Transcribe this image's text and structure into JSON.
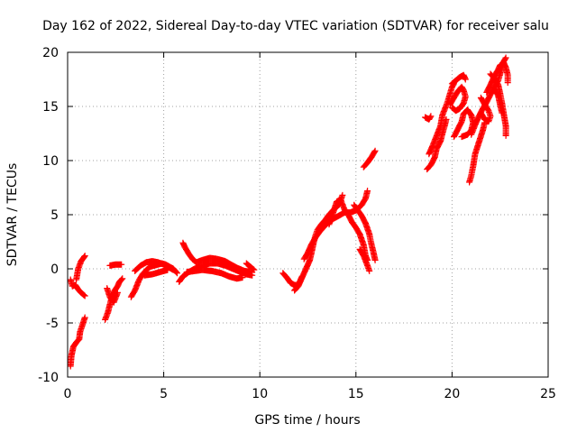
{
  "chart_data": {
    "type": "scatter",
    "title": "Day 162 of 2022, Sidereal Day-to-day VTEC variation (SDTVAR) for receiver salu",
    "xlabel": "GPS time / hours",
    "ylabel": "SDTVAR / TECUs",
    "xlim": [
      0,
      25
    ],
    "ylim": [
      -10,
      20
    ],
    "xticks": [
      0,
      5,
      10,
      15,
      20,
      25
    ],
    "yticks": [
      -10,
      -5,
      0,
      5,
      10,
      15,
      20
    ],
    "grid": true,
    "marker": "+",
    "series_color": "#ff0000",
    "series": [
      {
        "segments": [
          [
            [
              0.15,
              -9.0
            ],
            [
              0.2,
              -8.0
            ],
            [
              0.3,
              -7.2
            ],
            [
              0.45,
              -6.8
            ],
            [
              0.6,
              -6.5
            ],
            [
              0.65,
              -5.8
            ],
            [
              0.75,
              -5.3
            ],
            [
              0.9,
              -4.5
            ]
          ],
          [
            [
              0.15,
              -1.0
            ],
            [
              0.25,
              -1.6
            ],
            [
              0.4,
              -1.5
            ],
            [
              0.55,
              -1.9
            ],
            [
              0.7,
              -2.2
            ],
            [
              0.9,
              -2.5
            ]
          ],
          [
            [
              0.45,
              -1.0
            ],
            [
              0.55,
              0.0
            ],
            [
              0.7,
              0.7
            ],
            [
              0.9,
              1.2
            ]
          ],
          [
            [
              1.95,
              -4.7
            ],
            [
              2.1,
              -4.0
            ],
            [
              2.2,
              -3.3
            ],
            [
              2.3,
              -2.6
            ],
            [
              2.45,
              -2.0
            ],
            [
              2.6,
              -1.6
            ],
            [
              2.7,
              -1.2
            ],
            [
              2.85,
              -0.9
            ]
          ],
          [
            [
              2.05,
              -1.8
            ],
            [
              2.2,
              -2.6
            ],
            [
              2.4,
              -3.1
            ],
            [
              2.6,
              -2.2
            ]
          ],
          [
            [
              2.2,
              0.3
            ],
            [
              2.5,
              0.4
            ],
            [
              2.8,
              0.4
            ]
          ],
          [
            [
              3.3,
              -2.6
            ],
            [
              3.5,
              -2.0
            ],
            [
              3.7,
              -1.1
            ],
            [
              3.9,
              -0.5
            ],
            [
              4.1,
              -0.1
            ],
            [
              4.3,
              0.2
            ],
            [
              4.5,
              0.3
            ],
            [
              4.7,
              0.4
            ],
            [
              4.9,
              0.5
            ],
            [
              5.1,
              0.4
            ],
            [
              5.3,
              0.2
            ],
            [
              5.5,
              0.0
            ],
            [
              5.7,
              -0.4
            ]
          ],
          [
            [
              3.5,
              -0.2
            ],
            [
              3.8,
              0.3
            ],
            [
              4.1,
              0.6
            ],
            [
              4.4,
              0.7
            ],
            [
              4.7,
              0.6
            ],
            [
              5.0,
              0.4
            ],
            [
              5.3,
              0.1
            ],
            [
              5.5,
              -0.1
            ]
          ],
          [
            [
              4.0,
              -0.6
            ],
            [
              4.4,
              -0.5
            ],
            [
              4.8,
              -0.3
            ],
            [
              5.2,
              -0.1
            ]
          ],
          [
            [
              5.8,
              -1.2
            ],
            [
              6.0,
              -0.7
            ],
            [
              6.3,
              -0.3
            ],
            [
              6.6,
              0.0
            ],
            [
              7.0,
              0.3
            ],
            [
              7.4,
              0.5
            ],
            [
              7.8,
              0.5
            ],
            [
              8.2,
              0.3
            ],
            [
              8.6,
              0.0
            ],
            [
              9.0,
              -0.3
            ],
            [
              9.3,
              -0.5
            ],
            [
              9.6,
              -0.6
            ]
          ],
          [
            [
              6.0,
              2.4
            ],
            [
              6.1,
              2.0
            ],
            [
              6.3,
              1.4
            ],
            [
              6.5,
              0.9
            ],
            [
              6.7,
              0.6
            ],
            [
              7.0,
              0.8
            ],
            [
              7.4,
              1.0
            ],
            [
              7.8,
              0.9
            ],
            [
              8.2,
              0.7
            ],
            [
              8.5,
              0.4
            ],
            [
              8.8,
              0.1
            ],
            [
              9.2,
              -0.2
            ],
            [
              9.6,
              -0.3
            ]
          ],
          [
            [
              6.2,
              -0.3
            ],
            [
              6.6,
              -0.2
            ],
            [
              7.0,
              -0.1
            ],
            [
              7.5,
              -0.2
            ],
            [
              8.0,
              -0.4
            ],
            [
              8.4,
              -0.7
            ],
            [
              8.8,
              -0.9
            ],
            [
              9.1,
              -0.8
            ]
          ],
          [
            [
              9.3,
              0.5
            ],
            [
              9.5,
              0.2
            ],
            [
              9.7,
              -0.1
            ]
          ],
          [
            [
              11.2,
              -0.4
            ],
            [
              11.4,
              -0.8
            ],
            [
              11.6,
              -1.3
            ],
            [
              11.8,
              -1.5
            ],
            [
              12.0,
              -1.5
            ],
            [
              12.1,
              -1.1
            ],
            [
              12.2,
              -0.7
            ]
          ],
          [
            [
              11.8,
              -2.0
            ],
            [
              12.0,
              -1.6
            ],
            [
              12.2,
              -0.8
            ],
            [
              12.4,
              0.0
            ],
            [
              12.6,
              0.8
            ],
            [
              12.7,
              1.6
            ],
            [
              12.8,
              2.4
            ],
            [
              12.9,
              3.1
            ],
            [
              13.0,
              3.6
            ],
            [
              13.2,
              4.1
            ],
            [
              13.4,
              4.5
            ],
            [
              13.6,
              5.0
            ],
            [
              13.8,
              5.4
            ],
            [
              14.0,
              5.7
            ],
            [
              14.2,
              6.3
            ],
            [
              14.3,
              6.8
            ]
          ],
          [
            [
              12.3,
              0.9
            ],
            [
              12.5,
              1.5
            ],
            [
              12.7,
              2.3
            ],
            [
              12.9,
              2.9
            ],
            [
              13.1,
              3.4
            ],
            [
              13.3,
              3.8
            ],
            [
              13.5,
              4.2
            ],
            [
              13.8,
              4.6
            ],
            [
              14.1,
              4.9
            ],
            [
              14.4,
              5.2
            ],
            [
              14.7,
              5.2
            ],
            [
              15.0,
              5.4
            ],
            [
              15.3,
              5.9
            ],
            [
              15.5,
              6.5
            ],
            [
              15.6,
              7.2
            ]
          ],
          [
            [
              13.6,
              4.1
            ],
            [
              13.8,
              5.1
            ],
            [
              14.0,
              6.2
            ],
            [
              14.2,
              6.4
            ],
            [
              14.4,
              5.5
            ],
            [
              14.6,
              5.0
            ],
            [
              14.8,
              4.3
            ],
            [
              15.0,
              3.8
            ],
            [
              15.2,
              3.2
            ],
            [
              15.4,
              2.2
            ],
            [
              15.5,
              1.2
            ],
            [
              15.6,
              0.8
            ]
          ],
          [
            [
              14.9,
              5.9
            ],
            [
              15.1,
              5.4
            ],
            [
              15.3,
              4.9
            ],
            [
              15.5,
              4.2
            ],
            [
              15.7,
              3.2
            ],
            [
              15.8,
              2.3
            ],
            [
              15.9,
              1.6
            ],
            [
              16.0,
              0.8
            ]
          ],
          [
            [
              15.2,
              1.8
            ],
            [
              15.4,
              1.2
            ],
            [
              15.6,
              0.3
            ],
            [
              15.7,
              -0.2
            ]
          ],
          [
            [
              15.4,
              9.4
            ],
            [
              15.6,
              9.8
            ],
            [
              15.8,
              10.3
            ],
            [
              15.9,
              10.6
            ],
            [
              16.0,
              10.9
            ]
          ],
          [
            [
              18.6,
              14.0
            ],
            [
              18.8,
              13.8
            ],
            [
              18.9,
              14.1
            ]
          ],
          [
            [
              18.7,
              9.2
            ],
            [
              18.9,
              9.6
            ],
            [
              19.1,
              10.3
            ],
            [
              19.2,
              11.1
            ],
            [
              19.4,
              11.8
            ],
            [
              19.5,
              12.5
            ],
            [
              19.6,
              13.1
            ],
            [
              19.7,
              13.8
            ]
          ],
          [
            [
              18.8,
              10.6
            ],
            [
              19.0,
              11.4
            ],
            [
              19.2,
              12.3
            ],
            [
              19.4,
              13.2
            ],
            [
              19.5,
              14.2
            ],
            [
              19.7,
              15.1
            ],
            [
              19.8,
              15.6
            ],
            [
              19.9,
              16.2
            ],
            [
              20.0,
              16.8
            ],
            [
              20.1,
              17.1
            ]
          ],
          [
            [
              19.9,
              15.2
            ],
            [
              20.1,
              15.8
            ],
            [
              20.3,
              16.4
            ],
            [
              20.5,
              16.8
            ],
            [
              20.6,
              16.5
            ],
            [
              20.7,
              15.9
            ],
            [
              20.6,
              15.3
            ],
            [
              20.4,
              14.8
            ],
            [
              20.2,
              14.6
            ],
            [
              20.0,
              14.9
            ]
          ],
          [
            [
              20.1,
              12.2
            ],
            [
              20.3,
              12.9
            ],
            [
              20.5,
              13.6
            ],
            [
              20.6,
              14.3
            ],
            [
              20.8,
              14.7
            ],
            [
              21.0,
              14.2
            ],
            [
              21.1,
              13.5
            ],
            [
              21.0,
              12.8
            ],
            [
              20.8,
              12.4
            ],
            [
              20.5,
              12.2
            ]
          ],
          [
            [
              20.0,
              17.1
            ],
            [
              20.2,
              17.4
            ],
            [
              20.4,
              17.7
            ],
            [
              20.6,
              17.9
            ],
            [
              20.7,
              17.5
            ]
          ],
          [
            [
              20.9,
              8.0
            ],
            [
              21.0,
              8.6
            ],
            [
              21.1,
              9.5
            ],
            [
              21.2,
              10.6
            ],
            [
              21.4,
              11.7
            ],
            [
              21.6,
              12.8
            ],
            [
              21.7,
              13.5
            ]
          ],
          [
            [
              21.0,
              12.4
            ],
            [
              21.2,
              13.3
            ],
            [
              21.4,
              14.1
            ],
            [
              21.6,
              14.8
            ],
            [
              21.8,
              15.4
            ],
            [
              22.0,
              16.1
            ],
            [
              22.2,
              16.8
            ],
            [
              22.4,
              17.4
            ],
            [
              22.5,
              18.0
            ],
            [
              22.6,
              18.6
            ],
            [
              22.7,
              19.2
            ],
            [
              22.8,
              19.5
            ]
          ],
          [
            [
              21.5,
              15.8
            ],
            [
              21.7,
              15.2
            ],
            [
              21.9,
              14.6
            ],
            [
              22.0,
              14.1
            ],
            [
              21.9,
              13.6
            ],
            [
              21.7,
              13.8
            ],
            [
              21.5,
              14.4
            ]
          ],
          [
            [
              21.8,
              16.3
            ],
            [
              22.0,
              17.0
            ],
            [
              22.2,
              17.8
            ],
            [
              22.4,
              18.4
            ],
            [
              22.5,
              18.8
            ],
            [
              22.7,
              19.0
            ],
            [
              22.8,
              18.6
            ],
            [
              22.9,
              17.9
            ],
            [
              22.9,
              17.2
            ]
          ],
          [
            [
              22.0,
              18.0
            ],
            [
              22.2,
              17.6
            ],
            [
              22.4,
              17.0
            ],
            [
              22.5,
              16.2
            ],
            [
              22.6,
              15.3
            ],
            [
              22.7,
              14.2
            ],
            [
              22.8,
              13.2
            ],
            [
              22.8,
              12.3
            ]
          ],
          [
            [
              22.2,
              16.6
            ],
            [
              22.4,
              16.0
            ],
            [
              22.5,
              15.2
            ],
            [
              22.6,
              14.4
            ]
          ]
        ]
      }
    ]
  }
}
